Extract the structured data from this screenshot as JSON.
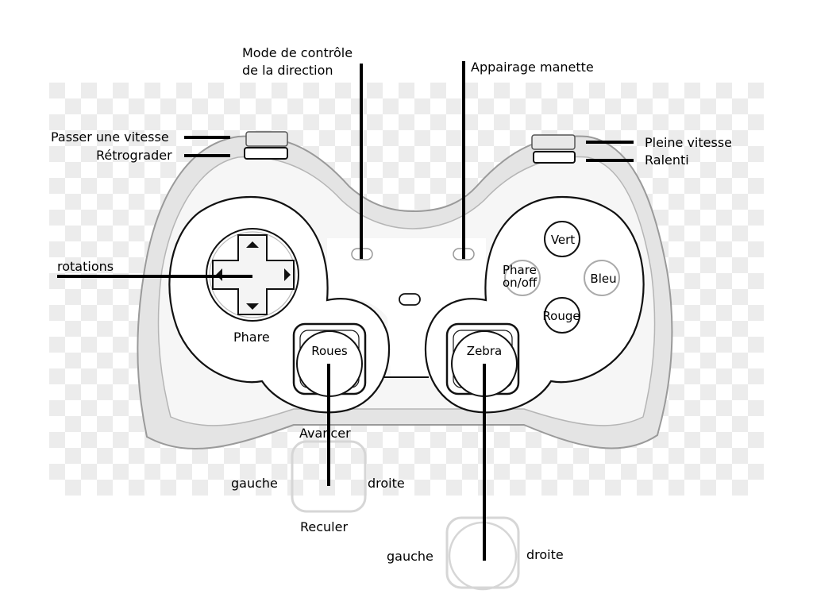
{
  "callouts": {
    "mode_direction_line1": "Mode de contrôle",
    "mode_direction_line2": "de la direction",
    "pairing": "Appairage manette",
    "shift_up": "Passer une vitesse",
    "shift_down": "Rétrograder",
    "full_speed": "Pleine vitesse",
    "slow": "Ralenti",
    "rotations": "rotations"
  },
  "buttons": {
    "green": "Vert",
    "headlight_toggle_line1": "Phare",
    "headlight_toggle_line2": "on/off",
    "blue": "Bleu",
    "red": "Rouge",
    "headlight": "Phare"
  },
  "left_stick": {
    "name": "Roues",
    "up": "Avancer",
    "left": "gauche",
    "right": "droite",
    "down": "Reculer"
  },
  "right_stick": {
    "name": "Zebra",
    "left": "gauche",
    "right": "droite"
  },
  "colors": {
    "outline": "#111111",
    "body_fill": "#ffffff",
    "shell_fill": "#e4e4e4",
    "checker": "#ececec",
    "leader": "#000000"
  }
}
